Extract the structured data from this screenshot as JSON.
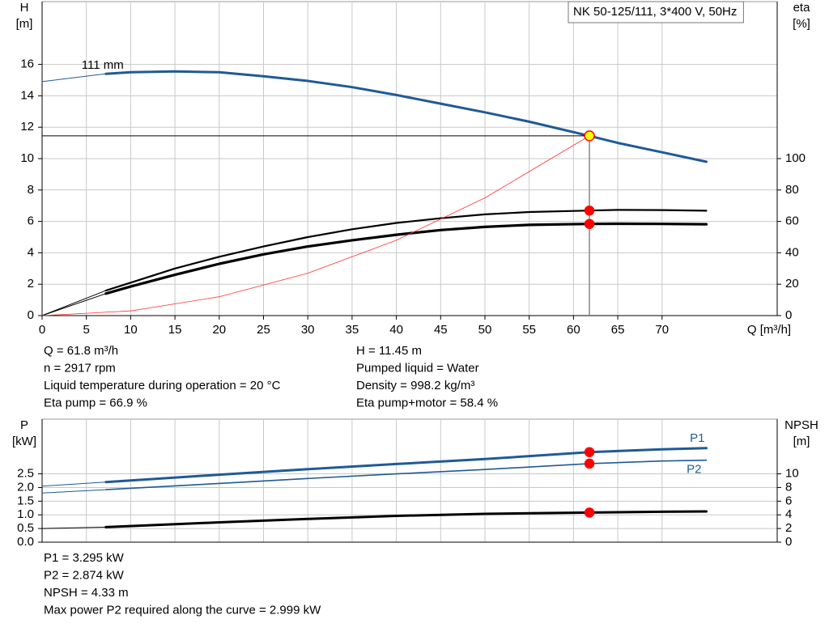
{
  "chart_data": [
    {
      "type": "line",
      "title": "NK 50-125/111, 3*400 V, 50Hz",
      "y_label": [
        "H",
        "[m]"
      ],
      "y2_label": [
        "eta",
        "[%]"
      ],
      "x_label": "Q [m³/h]",
      "xlim": [
        0,
        83
      ],
      "xticks": [
        0,
        5,
        10,
        15,
        20,
        25,
        30,
        35,
        40,
        45,
        50,
        55,
        60,
        65,
        70
      ],
      "xtick_labels": true,
      "ylim": [
        0,
        20
      ],
      "yticks": [
        0,
        2,
        4,
        6,
        8,
        10,
        12,
        14,
        16
      ],
      "y2lim": [
        0,
        200
      ],
      "y2ticks": [
        0,
        20,
        40,
        60,
        80,
        100
      ],
      "grid": true,
      "duty_x": 61.8,
      "marker_color": "#ff0000",
      "series": [
        {
          "name": "111 mm",
          "color": "#1f5a96",
          "width": 3,
          "lead_in": true,
          "guide": true,
          "marker_fill": "#ffff00",
          "label_at": "start",
          "x": [
            0,
            7.2,
            10,
            15,
            20,
            25,
            30,
            35,
            40,
            45,
            50,
            55,
            61.8,
            65,
            70,
            75
          ],
          "values": [
            14.9,
            15.4,
            15.5,
            15.55,
            15.5,
            15.25,
            14.95,
            14.55,
            14.05,
            13.5,
            12.95,
            12.35,
            11.45,
            11.0,
            10.4,
            9.8
          ]
        },
        {
          "color": "#000000",
          "width": 2.2,
          "lead_in": true,
          "axis": "y2",
          "x": [
            0,
            7.2,
            10,
            15,
            20,
            25,
            30,
            35,
            40,
            45,
            50,
            55,
            61.8,
            65,
            70,
            75
          ],
          "values": [
            0,
            16,
            21,
            30,
            37.5,
            44,
            50,
            55,
            59,
            62,
            64.5,
            66,
            66.9,
            67.3,
            67.2,
            66.8
          ]
        },
        {
          "color": "#000000",
          "width": 3.2,
          "lead_in": true,
          "axis": "y2",
          "x": [
            0,
            7.2,
            10,
            15,
            20,
            25,
            30,
            35,
            40,
            45,
            50,
            55,
            61.8,
            65,
            70,
            75
          ],
          "values": [
            0,
            14,
            18.5,
            26,
            33,
            39,
            44,
            48,
            51.5,
            54.5,
            56.5,
            57.8,
            58.4,
            58.5,
            58.4,
            58.2
          ]
        },
        {
          "color": "#ff3030",
          "width": 0.8,
          "x": [
            0,
            10,
            20,
            30,
            40,
            50,
            61.8
          ],
          "values": [
            0,
            0.3,
            1.2,
            2.7,
            4.8,
            7.5,
            11.45
          ]
        }
      ],
      "info": [
        [
          "Q = 61.8 m³/h",
          "n = 2917 rpm",
          "Liquid temperature during operation = 20 °C",
          "Eta pump = 66.9 %"
        ],
        [
          "H = 11.45 m",
          "Pumped liquid = Water",
          "Density = 998.2 kg/m³",
          "Eta pump+motor = 58.4 %"
        ]
      ]
    },
    {
      "type": "line",
      "y_label": [
        "P",
        "[kW]"
      ],
      "y2_label": [
        "NPSH",
        "[m]"
      ],
      "xlim": [
        0,
        83
      ],
      "xticks": [
        0,
        5,
        10,
        15,
        20,
        25,
        30,
        35,
        40,
        45,
        50,
        55,
        60,
        65,
        70
      ],
      "xtick_labels": false,
      "ylim": [
        0,
        4.5
      ],
      "yticks": [
        {
          "value": 0,
          "label": "0.0"
        },
        {
          "value": 0.5,
          "label": "0.5"
        },
        {
          "value": 1,
          "label": "1.0"
        },
        {
          "value": 1.5,
          "label": "1.5"
        },
        {
          "value": 2,
          "label": "2.0"
        },
        {
          "value": 2.5,
          "label": "2.5"
        }
      ],
      "y2lim": [
        0,
        18
      ],
      "y2ticks": [
        0,
        2,
        4,
        6,
        8,
        10
      ],
      "grid": true,
      "duty_x": 61.8,
      "marker_color": "#ff0000",
      "series": [
        {
          "name": "P1",
          "color": "#1f5a96",
          "width": 3,
          "lead_in": true,
          "label_at": "end-above",
          "x": [
            0,
            7.2,
            20,
            30,
            40,
            50,
            61.8,
            70,
            75
          ],
          "values": [
            2.05,
            2.2,
            2.47,
            2.67,
            2.86,
            3.04,
            3.295,
            3.4,
            3.44
          ]
        },
        {
          "name": "P2",
          "color": "#1f5a96",
          "width": 1.6,
          "lead_in": true,
          "label_at": "end-below",
          "x": [
            0,
            7.2,
            20,
            30,
            40,
            50,
            61.8,
            70,
            75
          ],
          "values": [
            1.8,
            1.92,
            2.15,
            2.33,
            2.5,
            2.66,
            2.874,
            2.97,
            2.999
          ]
        },
        {
          "color": "#000000",
          "width": 3,
          "lead_in": true,
          "axis": "y2",
          "x": [
            0,
            7.2,
            20,
            30,
            40,
            50,
            61.8,
            70,
            75
          ],
          "values": [
            2.0,
            2.2,
            2.9,
            3.4,
            3.85,
            4.15,
            4.33,
            4.45,
            4.5
          ]
        }
      ],
      "info": [
        [
          "P1 = 3.295 kW",
          "P2 = 2.874 kW",
          "NPSH = 4.33 m",
          "Max power P2 required along the curve = 2.999 kW"
        ]
      ]
    }
  ]
}
